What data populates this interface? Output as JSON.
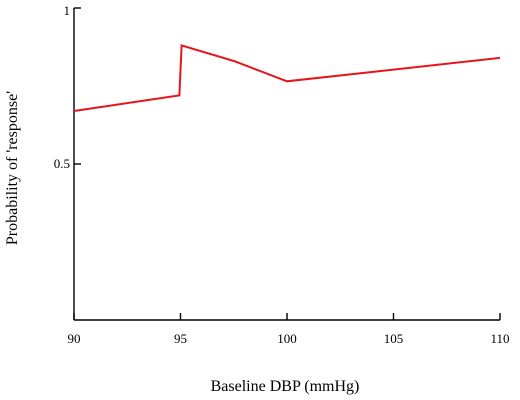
{
  "chart_data": {
    "type": "line",
    "title": "",
    "xlabel": "Baseline DBP (mmHg)",
    "ylabel": "Probability of 'response'",
    "xlim": [
      90,
      110
    ],
    "ylim": [
      0,
      1
    ],
    "x_ticks": [
      90,
      95,
      100,
      105,
      110
    ],
    "x_tick_labels": [
      "90",
      "95",
      "100",
      "105",
      "110"
    ],
    "y_ticks": [
      0.5,
      1
    ],
    "y_tick_labels": [
      "0.5",
      "1"
    ],
    "grid": false,
    "series": [
      {
        "color": "#e8141c",
        "x": [
          90,
          94.95,
          95.05,
          97.5,
          100,
          110
        ],
        "y": [
          0.67,
          0.72,
          0.88,
          0.83,
          0.765,
          0.84
        ]
      }
    ]
  }
}
